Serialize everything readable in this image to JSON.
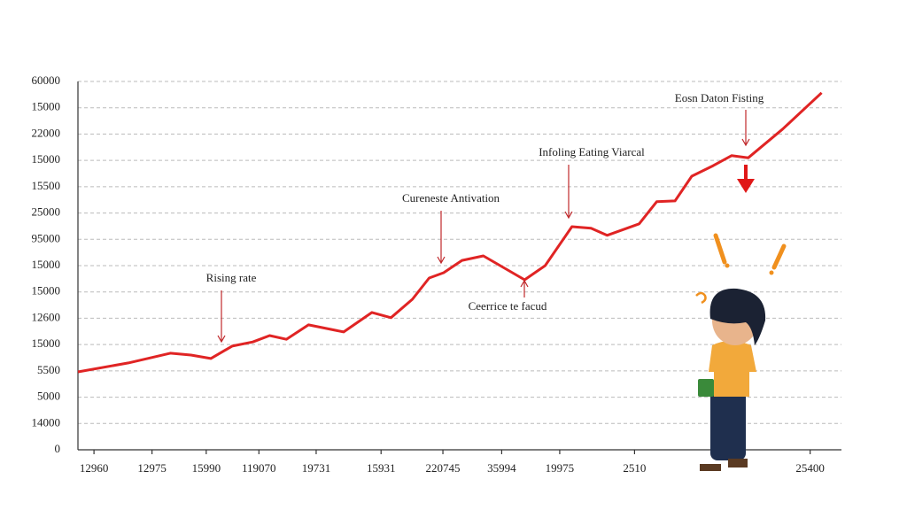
{
  "chart_data": {
    "type": "line",
    "xlim": [
      0,
      100
    ],
    "ylim": [
      0,
      14
    ],
    "xticks": [
      {
        "value": 2.1,
        "label": "12960"
      },
      {
        "value": 9.7,
        "label": "12975"
      },
      {
        "value": 16.8,
        "label": "15990"
      },
      {
        "value": 23.7,
        "label": "119070"
      },
      {
        "value": 31.2,
        "label": "19731"
      },
      {
        "value": 39.7,
        "label": "15931"
      },
      {
        "value": 47.8,
        "label": "220745"
      },
      {
        "value": 55.5,
        "label": "35994"
      },
      {
        "value": 63.1,
        "label": "19975"
      },
      {
        "value": 72.9,
        "label": "2510"
      },
      {
        "value": 95.9,
        "label": "25400"
      }
    ],
    "yticks": [
      0,
      {
        "value": 1,
        "label": "14000"
      },
      {
        "value": 2,
        "label": "5000"
      },
      {
        "value": 3,
        "label": "5500"
      },
      {
        "value": 4,
        "label": "15000"
      },
      {
        "value": 5,
        "label": "12600"
      },
      {
        "value": 6,
        "label": "15000"
      },
      {
        "value": 7,
        "label": "15000"
      },
      {
        "value": 8,
        "label": "95000"
      },
      {
        "value": 9,
        "label": "25000"
      },
      {
        "value": 10,
        "label": "15500"
      },
      {
        "value": 11,
        "label": "15000"
      },
      {
        "value": 12,
        "label": "22000"
      },
      {
        "value": 13,
        "label": "15000"
      },
      {
        "value": 14,
        "label": "60000"
      }
    ],
    "grid": true,
    "series": [
      {
        "color": "#e02424",
        "x": [
          0,
          6.6,
          12.1,
          14.8,
          17.4,
          20.2,
          22.9,
          25.1,
          27.3,
          30.2,
          34.8,
          38.5,
          41.0,
          43.8,
          46.0,
          47.9,
          50.3,
          53.1,
          58.5,
          61.2,
          64.7,
          67.2,
          69.3,
          73.5,
          75.8,
          78.2,
          80.4,
          83.2,
          85.6,
          87.8,
          92.3,
          97.4
        ],
        "values": [
          2.96,
          3.3,
          3.67,
          3.6,
          3.47,
          3.94,
          4.1,
          4.34,
          4.2,
          4.75,
          4.48,
          5.22,
          5.02,
          5.72,
          6.53,
          6.73,
          7.2,
          7.37,
          6.46,
          7.0,
          8.48,
          8.42,
          8.15,
          8.59,
          9.43,
          9.46,
          10.4,
          10.8,
          11.18,
          11.1,
          12.19,
          13.57
        ]
      }
    ],
    "annotations": [
      "Rising rate",
      "Cureneste Antivation",
      "Infoling Eating Viarcal",
      "Eosn Daton Fisting",
      "Ceerrice te facud"
    ]
  }
}
